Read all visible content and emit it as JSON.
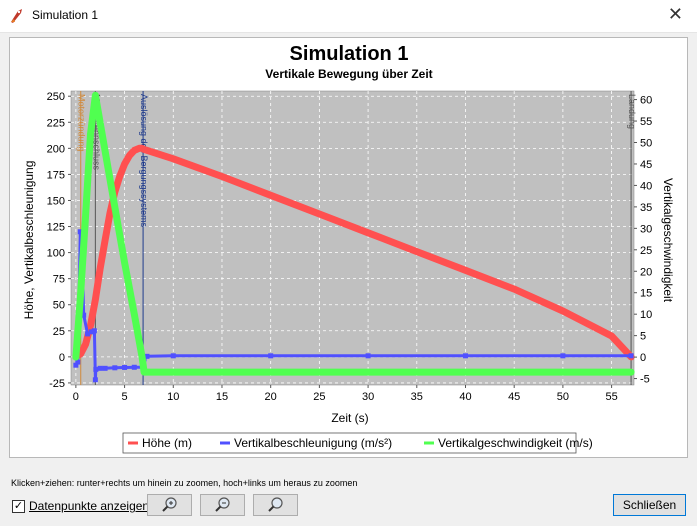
{
  "window": {
    "title": "Simulation 1",
    "close_glyph": "✕",
    "app_icon": "rocket-icon"
  },
  "chart": {
    "title": "Simulation 1",
    "subtitle": "Vertikale Bewegung über Zeit",
    "xlabel": "Zeit (s)",
    "ylabel_left": "Höhe, Vertikalbeschleunigung",
    "ylabel_right": "Vertikalgeschwindigkeit",
    "x_ticks": [
      "0",
      "5",
      "10",
      "15",
      "20",
      "25",
      "30",
      "35",
      "40",
      "45",
      "50",
      "55"
    ],
    "y_left_ticks": [
      "-25",
      "0",
      "25",
      "50",
      "75",
      "100",
      "125",
      "150",
      "175",
      "200",
      "225",
      "250"
    ],
    "y_right_ticks": [
      "-5",
      "0",
      "5",
      "10",
      "15",
      "20",
      "25",
      "30",
      "35",
      "40",
      "45",
      "50",
      "55",
      "60"
    ],
    "events": [
      {
        "label": "Motorzündung",
        "color": "#d08a3c"
      },
      {
        "label": "Motorbrennschluss",
        "color": "#555555"
      },
      {
        "label": "Auslösung des Bergungssystems",
        "color": "#1f3b8c"
      },
      {
        "label": "Landung",
        "color": "#555555"
      }
    ],
    "legend": [
      {
        "label": "Höhe (m)",
        "color": "#ff5050"
      },
      {
        "label": "Vertikalbeschleunigung (m/s²)",
        "color": "#5050ff"
      },
      {
        "label": "Vertikalgeschwindigkeit (m/s)",
        "color": "#50ff50"
      }
    ]
  },
  "chart_data": {
    "type": "line",
    "title": "Simulation 1",
    "subtitle": "Vertikale Bewegung über Zeit",
    "xlabel": "Zeit (s)",
    "ylabel": "Höhe, Vertikalbeschleunigung",
    "y2label": "Vertikalgeschwindigkeit",
    "xlim": [
      -0.5,
      57.3
    ],
    "ylim": [
      -27,
      255
    ],
    "y2lim": [
      -6.5,
      62
    ],
    "grid": true,
    "legend_position": "bottom",
    "series": [
      {
        "name": "Höhe (m)",
        "axis": "left",
        "color": "#ff5050",
        "x": [
          0,
          0.5,
          1,
          1.5,
          2,
          2.5,
          3,
          3.5,
          4,
          4.5,
          5,
          5.5,
          6,
          6.5,
          6.8,
          7,
          10,
          15,
          20,
          25,
          30,
          35,
          40,
          45,
          50,
          55,
          57
        ],
        "y": [
          0,
          3,
          12,
          30,
          55,
          85,
          112,
          138,
          158,
          173,
          185,
          193,
          198,
          200,
          200,
          199,
          190,
          173,
          155,
          137,
          119,
          101,
          83,
          65,
          44,
          20,
          0
        ]
      },
      {
        "name": "Vertikalbeschleunigung (m/s²)",
        "axis": "left",
        "color": "#5050ff",
        "x": [
          0,
          0.2,
          0.3,
          0.45,
          0.6,
          0.8,
          1.2,
          1.6,
          1.9,
          2.0,
          2.05,
          2.5,
          3,
          4,
          5,
          6,
          6.9,
          7.0,
          7.3,
          10,
          20,
          30,
          40,
          50,
          57
        ],
        "y": [
          -8,
          -5,
          40,
          120,
          110,
          40,
          22,
          24,
          25,
          -22,
          -12,
          -11,
          -11,
          -10.5,
          -10.2,
          -10,
          -10,
          -2,
          0.5,
          1,
          1,
          1,
          1,
          1,
          1
        ]
      },
      {
        "name": "Vertikalgeschwindigkeit (m/s)",
        "axis": "right",
        "color": "#50ff50",
        "x": [
          0,
          0.5,
          1,
          1.5,
          2,
          3,
          4,
          5,
          6,
          6.8,
          7.0,
          10,
          20,
          30,
          40,
          50,
          57
        ],
        "y": [
          0,
          15,
          33,
          52,
          61,
          48,
          35,
          22,
          10,
          0,
          -3.5,
          -3.5,
          -3.5,
          -3.5,
          -3.5,
          -3.5,
          -3.5
        ]
      }
    ],
    "events": [
      {
        "label": "Motorzündung",
        "x": 0.5
      },
      {
        "label": "Motorbrennschluss",
        "x": 2
      },
      {
        "label": "Auslösung des Bergungssystems",
        "x": 6.9
      },
      {
        "label": "Landung",
        "x": 57
      }
    ]
  },
  "footer": {
    "hint": "Klicken+ziehen: runter+rechts um hinein zu zoomen, hoch+links um heraus zu zoomen",
    "checkbox_label": "Datenpunkte anzeigen",
    "checkbox_checked": true,
    "checkbox_mark": "✓",
    "zoom_buttons": [
      "zoom-in-icon",
      "zoom-out-icon",
      "zoom-reset-icon"
    ],
    "close_label": "Schließen"
  }
}
